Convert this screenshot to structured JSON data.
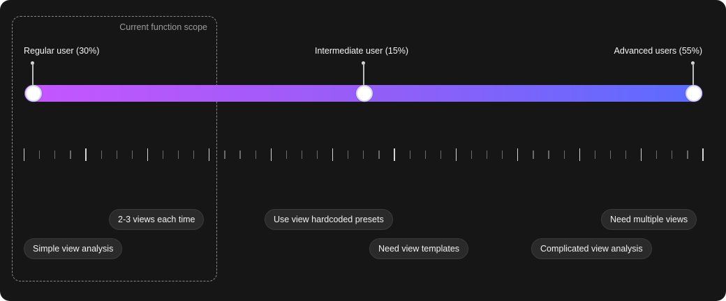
{
  "scope": {
    "label": "Current function scope"
  },
  "markers": [
    {
      "label": "Regular user (30%)"
    },
    {
      "label": "Intermediate user (15%)"
    },
    {
      "label": "Advanced users (55%)"
    }
  ],
  "gradient": {
    "start_color": "#c656ff",
    "end_color": "#5b6cff"
  },
  "tags": [
    {
      "label": "2-3 views each time"
    },
    {
      "label": "Simple view analysis"
    },
    {
      "label": "Use view hardcoded presets"
    },
    {
      "label": "Need view templates"
    },
    {
      "label": "Need multiple views"
    },
    {
      "label": "Complicated view analysis"
    }
  ]
}
